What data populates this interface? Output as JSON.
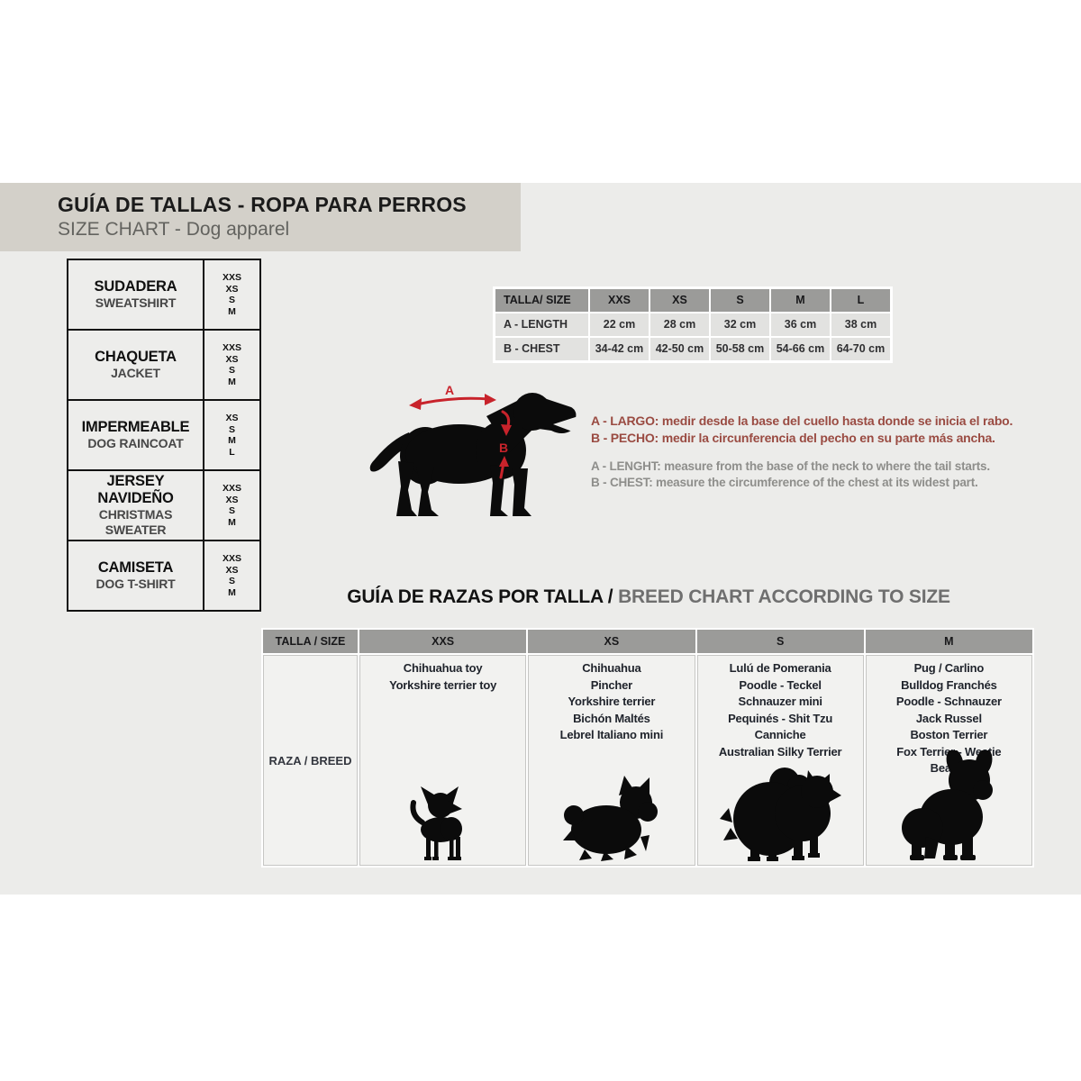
{
  "header": {
    "title": "GUÍA DE TALLAS - ROPA PARA PERROS",
    "subtitle": "SIZE CHART - Dog apparel"
  },
  "products": [
    {
      "name_es": "SUDADERA",
      "name_en": "SWEATSHIRT",
      "sizes": [
        "XXS",
        "XS",
        "S",
        "M"
      ]
    },
    {
      "name_es": "CHAQUETA",
      "name_en": "JACKET",
      "sizes": [
        "XXS",
        "XS",
        "S",
        "M"
      ]
    },
    {
      "name_es": "IMPERMEABLE",
      "name_en": "DOG RAINCOAT",
      "sizes": [
        "XS",
        "S",
        "M",
        "L"
      ]
    },
    {
      "name_es": "JERSEY NAVIDEÑO",
      "name_en": "CHRISTMAS SWEATER",
      "sizes": [
        "XXS",
        "XS",
        "S",
        "M"
      ]
    },
    {
      "name_es": "CAMISETA",
      "name_en": "DOG T-SHIRT",
      "sizes": [
        "XXS",
        "XS",
        "S",
        "M"
      ]
    }
  ],
  "chart_data": {
    "type": "table",
    "title": "Dog apparel size chart",
    "header": [
      "TALLA/ SIZE",
      "XXS",
      "XS",
      "S",
      "M",
      "L"
    ],
    "row_a": [
      "A - LENGTH",
      "22 cm",
      "28 cm",
      "32 cm",
      "36 cm",
      "38 cm"
    ],
    "row_b": [
      "B - CHEST",
      "34-42 cm",
      "42-50 cm",
      "50-58 cm",
      "54-66 cm",
      "64-70 cm"
    ]
  },
  "diagram": {
    "label_a": "A",
    "label_b": "B"
  },
  "measure_notes": {
    "es": [
      "A - LARGO: medir desde la base del cuello hasta donde se inicia el rabo.",
      "B - PECHO: medir la circunferencia del pecho en su parte más ancha."
    ],
    "en": [
      "A - LENGHT: measure from the base of the neck to where the tail starts.",
      "B - CHEST: measure the circumference of the chest at its widest part."
    ]
  },
  "breed_section": {
    "title_es": "GUÍA DE RAZAS POR TALLA / ",
    "title_en": "BREED CHART ACCORDING TO SIZE",
    "header": [
      "TALLA / SIZE",
      "XXS",
      "XS",
      "S",
      "M"
    ],
    "row_label": "RAZA / BREED",
    "columns": [
      {
        "size": "XXS",
        "breeds": [
          "Chihuahua toy",
          "Yorkshire terrier toy"
        ],
        "dog_icon": "chihuahua-silhouette"
      },
      {
        "size": "XS",
        "breeds": [
          "Chihuahua",
          "Pincher",
          "Yorkshire terrier",
          "Bichón Maltés",
          "Lebrel Italiano mini"
        ],
        "dog_icon": "yorkshire-silhouette"
      },
      {
        "size": "S",
        "breeds": [
          "Lulú de Pomerania",
          "Poodle  -  Teckel",
          "Schnauzer mini",
          "Pequinés  -  Shit Tzu",
          "Canniche",
          "Australian Silky Terrier"
        ],
        "dog_icon": "pomeranian-silhouette"
      },
      {
        "size": "M",
        "breeds": [
          "Pug / Carlino",
          "Bulldog Franchés",
          "Poodle  -  Schnauzer",
          "Jack Russel",
          "Boston Terrier",
          "Fox Terrier  -  Westie",
          "Beagle"
        ],
        "dog_icon": "french-bulldog-silhouette"
      }
    ]
  },
  "colors": {
    "band": "#ECECEA",
    "banner": "#D3D0C9",
    "table_header": "#9B9B99",
    "table_cell": "#E2E2E0",
    "breed_cell": "#F2F2F0",
    "accent_red": "#C8232B",
    "note_red": "#9A4B42",
    "note_gray": "#8E8E8B"
  }
}
